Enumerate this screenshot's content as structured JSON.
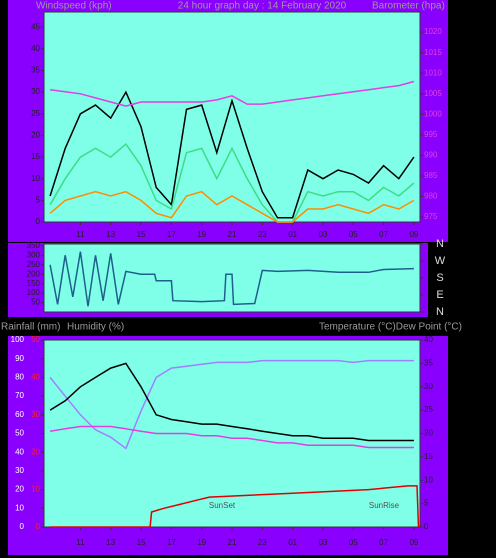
{
  "chart_data": [
    {
      "type": "line",
      "title": "24 hour graph day : 14 February 2020",
      "y_label": "Windspeed (kph)",
      "y2_label": "Barometer (hpa)",
      "x": [
        9,
        10,
        11,
        12,
        13,
        14,
        15,
        16,
        17,
        18,
        19,
        20,
        21,
        22,
        23,
        24,
        25,
        26,
        27,
        28,
        29,
        30,
        31,
        32,
        33
      ],
      "xlim": [
        8.6,
        33.4
      ],
      "xticks": [
        11,
        13,
        15,
        17,
        19,
        21,
        23,
        {
          "value": 25,
          "label": "01"
        },
        {
          "value": 27,
          "label": "03"
        },
        {
          "value": 29,
          "label": "05"
        },
        {
          "value": 31,
          "label": "07"
        },
        {
          "value": 33,
          "label": "09"
        }
      ],
      "ylim": [
        0,
        48.5
      ],
      "yticks": [
        0,
        5,
        10,
        15,
        20,
        25,
        30,
        35,
        40,
        45
      ],
      "y2lim": [
        973.8,
        1024.9
      ],
      "y2ticks": [
        975,
        980,
        985,
        990,
        995,
        1000,
        1005,
        1010,
        1015,
        1020
      ],
      "series": [
        {
          "color": "#000000",
          "values": [
            6,
            17,
            25,
            27,
            24,
            30,
            22,
            8,
            4,
            26,
            27,
            16,
            28,
            17,
            7,
            1,
            1,
            12,
            10,
            12,
            11,
            9,
            13,
            10,
            15
          ]
        },
        {
          "color": "#3ddc84",
          "values": [
            4,
            10,
            15,
            17,
            15,
            18,
            13,
            5,
            3,
            16,
            17,
            10,
            17,
            10,
            4,
            0,
            0,
            7,
            6,
            7,
            7,
            5,
            8,
            6,
            9
          ]
        },
        {
          "color": "#ff8c00",
          "values": [
            2,
            5,
            6,
            7,
            6,
            7,
            5,
            2,
            1,
            6,
            7,
            4,
            6,
            4,
            2,
            0,
            0,
            3,
            3,
            4,
            3,
            2,
            4,
            3,
            5
          ]
        },
        {
          "color": "#e040e0",
          "axis": "y2",
          "values": [
            1006,
            1005.5,
            1005,
            1004,
            1003,
            1002,
            1003,
            1003,
            1003,
            1003,
            1003,
            1003.5,
            1004.5,
            1002.5,
            1002.5,
            1003,
            1003.5,
            1004,
            1004.5,
            1005,
            1005.5,
            1006,
            1006.5,
            1007,
            1008
          ]
        }
      ]
    },
    {
      "type": "line",
      "x": [
        9,
        9.5,
        10,
        10.5,
        11,
        11.5,
        12,
        12.5,
        13,
        13.5,
        14,
        15,
        15.9,
        16,
        17,
        17.1,
        19,
        20.5,
        20.6,
        21,
        21.1,
        22.5,
        23,
        24,
        26,
        28,
        30,
        31,
        33
      ],
      "xlim": [
        8.6,
        33.4
      ],
      "ylim": [
        0,
        360
      ],
      "yticks": [
        50,
        100,
        150,
        200,
        250,
        300,
        350
      ],
      "y2lim": [
        0,
        360
      ],
      "y2ticks": [
        {
          "value": 360,
          "label": "N"
        },
        {
          "value": 270,
          "label": "W"
        },
        {
          "value": 180,
          "label": "S"
        },
        {
          "value": 90,
          "label": "E"
        },
        {
          "value": 0,
          "label": "N"
        }
      ],
      "series": [
        {
          "color": "#1f5f8b",
          "values": [
            250,
            40,
            300,
            80,
            320,
            30,
            300,
            60,
            310,
            40,
            215,
            200,
            200,
            165,
            165,
            60,
            55,
            60,
            200,
            200,
            40,
            45,
            220,
            215,
            220,
            210,
            210,
            225,
            230
          ]
        }
      ]
    },
    {
      "type": "line",
      "y3_label": "Rainfall (mm)",
      "y_label": "Humidity (%)",
      "y2_label": "Temperature (°C)Dew Point (°C)",
      "x": [
        9,
        10,
        11,
        12,
        13,
        14,
        15,
        16,
        17,
        18,
        19,
        20,
        21,
        22,
        23,
        24,
        25,
        26,
        27,
        28,
        29,
        30,
        31,
        32,
        33
      ],
      "xlim": [
        8.6,
        33.4
      ],
      "xticks": [
        11,
        13,
        15,
        17,
        19,
        21,
        23,
        {
          "value": 25,
          "label": "01"
        },
        {
          "value": 27,
          "label": "03"
        },
        {
          "value": 29,
          "label": "05"
        },
        {
          "value": 31,
          "label": "07"
        },
        {
          "value": 33,
          "label": "09"
        }
      ],
      "ylim": [
        0,
        100
      ],
      "yticks": [
        0,
        10,
        20,
        30,
        40,
        50,
        60,
        70,
        80,
        90,
        100
      ],
      "y2lim": [
        0,
        40
      ],
      "y2ticks": [
        0,
        5,
        10,
        15,
        20,
        25,
        30,
        35,
        40
      ],
      "y3lim": [
        0,
        50
      ],
      "y3ticks": [
        0,
        10,
        20,
        30,
        40,
        50
      ],
      "annotations": [
        "SunSet",
        "SunRise"
      ],
      "series": [
        {
          "color": "#a080ff",
          "values": [
            80,
            70,
            60,
            52,
            48,
            42,
            62,
            80,
            85,
            86,
            87,
            88,
            88,
            88,
            89,
            89,
            89,
            89,
            89,
            89,
            88,
            89,
            89,
            89,
            89
          ]
        },
        {
          "color": "#000000",
          "axis": "y2",
          "values": [
            25,
            27,
            30,
            32,
            34,
            35,
            30,
            24,
            23,
            22.5,
            22,
            22,
            21.5,
            21,
            20.5,
            20,
            19.5,
            19.5,
            19,
            19,
            19,
            18.5,
            18.5,
            18.5,
            18.5
          ]
        },
        {
          "color": "#e040e0",
          "axis": "y2",
          "values": [
            20.5,
            21,
            21.5,
            21.5,
            21.5,
            21,
            20.5,
            20,
            20,
            20,
            19.5,
            19.5,
            19,
            19,
            18.5,
            18,
            18,
            17.5,
            17.5,
            17.5,
            17.5,
            17,
            17,
            17,
            17
          ]
        },
        {
          "color": "#e00000",
          "axis": "y3",
          "x": [
            9,
            15.6,
            15.7,
            16.5,
            17.5,
            18.5,
            19.5,
            25,
            30,
            32.6,
            33.2,
            33.3
          ],
          "values": [
            0,
            0,
            4,
            5,
            6,
            7,
            8,
            9,
            10,
            11,
            11,
            0
          ]
        }
      ]
    }
  ]
}
